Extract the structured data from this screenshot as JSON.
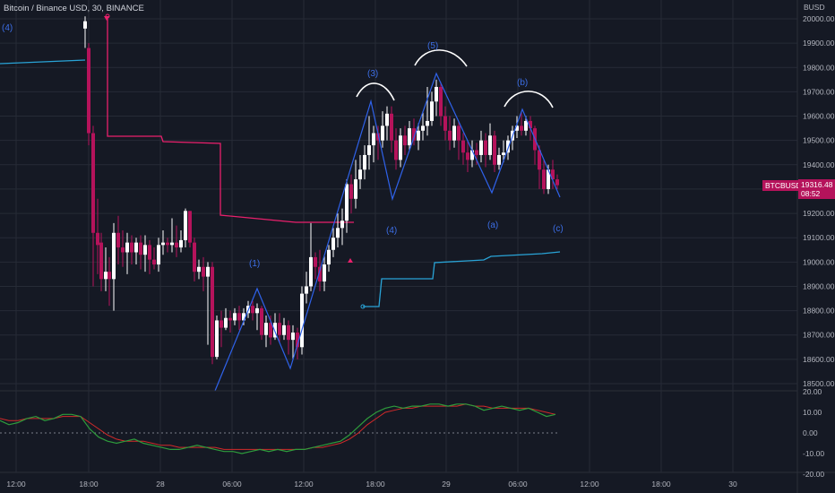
{
  "header": {
    "title": "Bitcoin / Binance USD, 30, BINANCE",
    "currency": "BUSD"
  },
  "price_axis": {
    "labels": [
      "20000.00",
      "19900.00",
      "19800.00",
      "19700.00",
      "19600.00",
      "19500.00",
      "19400.00",
      "19300.00",
      "19200.00",
      "19100.00",
      "19000.00",
      "18900.00",
      "18800.00",
      "18700.00",
      "18600.00",
      "18500.00"
    ],
    "values": [
      20000,
      19900,
      19800,
      19700,
      19600,
      19500,
      19400,
      19300,
      19200,
      19100,
      19000,
      18900,
      18800,
      18700,
      18600,
      18500
    ]
  },
  "price_tag": {
    "symbol": "BTCBUSD",
    "price": "19316.48",
    "countdown": "08:52",
    "value": 19316.48,
    "color": "#b5135b"
  },
  "indicator_axis": {
    "labels": [
      "20.00",
      "10.00",
      "0.00",
      "-10.00",
      "-20.00"
    ],
    "values": [
      20,
      10,
      0,
      -10,
      -20
    ]
  },
  "time_axis": {
    "labels": [
      "12:00",
      "18:00",
      "28",
      "06:00",
      "12:00",
      "18:00",
      "29",
      "06:00",
      "12:00",
      "18:00",
      "30"
    ]
  },
  "wave_labels": {
    "w4_left": "(4)",
    "w1": "(1)",
    "w3": "(3)",
    "w4": "(4)",
    "w5": "(5)",
    "wb": "(b)",
    "wa": "(a)",
    "wc": "(c)"
  },
  "colors": {
    "background": "#151924",
    "grid": "#262b36",
    "up_candle": "#ffffff",
    "down_candle": "#b5135b",
    "wave_line": "#2f62ea",
    "upper_line": "#e9206c",
    "lower_line": "#29a3d6",
    "oscillator_green": "#2e9c3c",
    "oscillator_red": "#d32a2a",
    "axis_text": "#b2b5be",
    "wave_text": "#3c6ee6"
  }
}
